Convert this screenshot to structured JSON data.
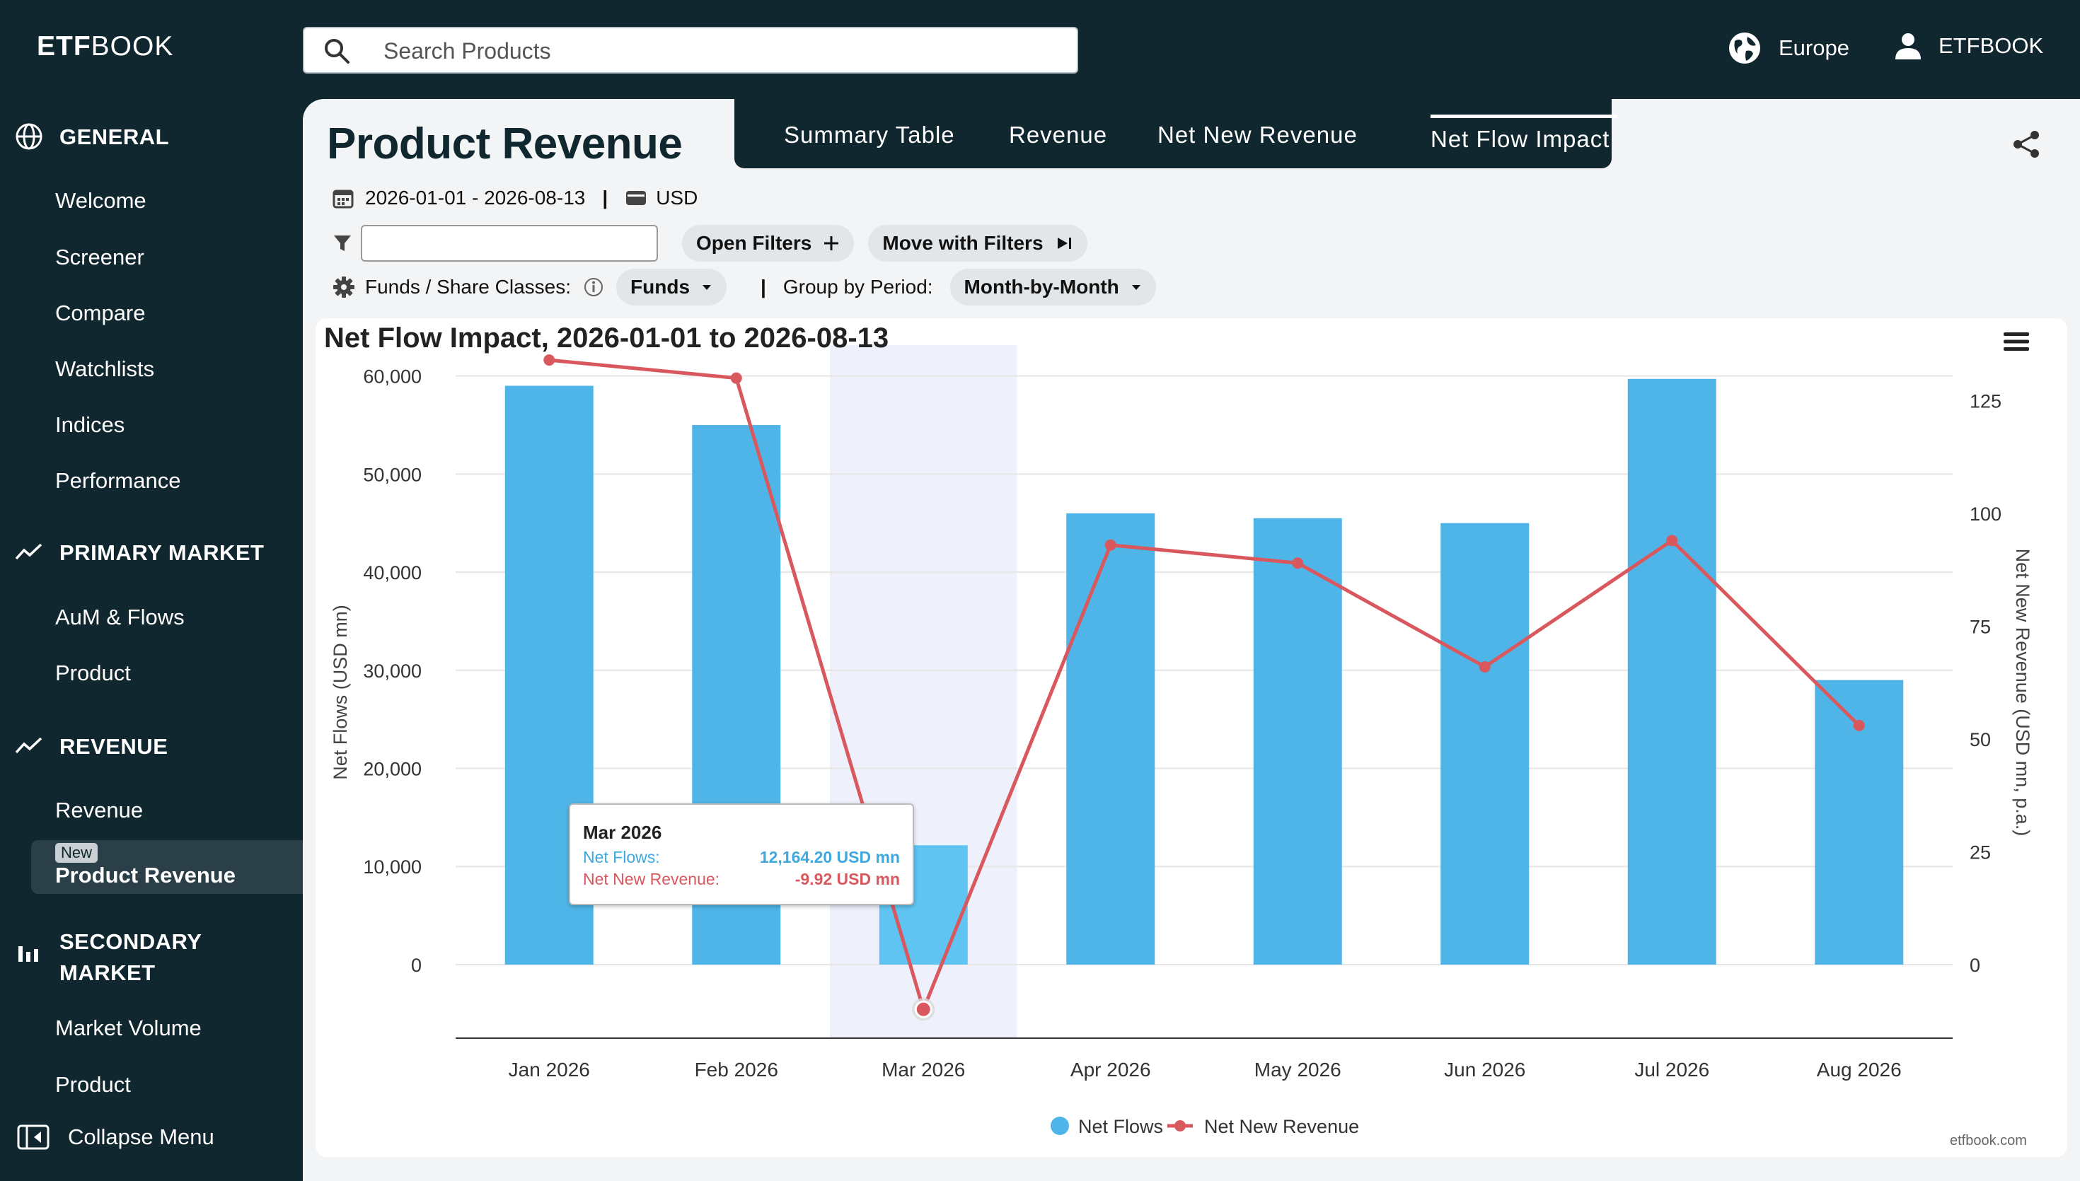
{
  "header": {
    "logo_prefix": "ETF",
    "logo_suffix": "BOOK",
    "search_placeholder": "Search Products",
    "region": "Europe",
    "user": "ETFBOOK"
  },
  "sidebar": {
    "sections": [
      {
        "label": "GENERAL",
        "icon": "globe-icon",
        "items": [
          "Welcome",
          "Screener",
          "Compare",
          "Watchlists",
          "Indices",
          "Performance"
        ]
      },
      {
        "label": "PRIMARY MARKET",
        "icon": "trend-icon",
        "items": [
          "AuM & Flows",
          "Product"
        ]
      },
      {
        "label": "REVENUE",
        "icon": "trend-icon",
        "items": [
          "Revenue"
        ]
      },
      {
        "label_line1": "SECONDARY",
        "label_line2": "MARKET",
        "icon": "bar-chart-icon",
        "items": [
          "Market Volume",
          "Product"
        ]
      }
    ],
    "active_item": {
      "badge": "New",
      "label": "Product Revenue"
    },
    "collapse_label": "Collapse Menu"
  },
  "page": {
    "title": "Product Revenue",
    "tabs": [
      "Summary Table",
      "Revenue",
      "Net New Revenue",
      "Net Flow Impact"
    ],
    "active_tab": "Net Flow Impact",
    "date_range": "2026-01-01 - 2026-08-13",
    "separator": "|",
    "currency": "USD",
    "filter_value": "",
    "open_filters_label": "Open Filters",
    "move_filters_label": "Move with Filters",
    "funds_label": "Funds / Share Classes:",
    "funds_value": "Funds",
    "group_label": "Group by Period:",
    "group_value": "Month-by-Month"
  },
  "chart_data": {
    "type": "bar",
    "title": "Net Flow Impact, 2026-01-01 to 2026-08-13",
    "categories": [
      "Jan 2026",
      "Feb 2026",
      "Mar 2026",
      "Apr 2026",
      "May 2026",
      "Jun 2026",
      "Jul 2026",
      "Aug 2026"
    ],
    "series": [
      {
        "name": "Net Flows",
        "type": "bar",
        "axis": "left",
        "color": "#4fb5e8",
        "values": [
          59000,
          55000,
          12164.2,
          46000,
          45500,
          45000,
          59700,
          29000
        ]
      },
      {
        "name": "Net New Revenue",
        "type": "line",
        "axis": "right",
        "color": "#d9585e",
        "values": [
          134,
          130,
          -9.92,
          93,
          89,
          66,
          94,
          53
        ]
      }
    ],
    "ylabel": "Net Flows (USD mn)",
    "y2label": "Net New Revenue (USD mn, p.a.)",
    "ylim": [
      -7500,
      63000
    ],
    "y2lim": [
      -16.3,
      137
    ],
    "yticks": [
      "0",
      "10,000",
      "20,000",
      "30,000",
      "40,000",
      "50,000",
      "60,000"
    ],
    "y2ticks": [
      "0",
      "25",
      "50",
      "75",
      "100",
      "125"
    ],
    "legend": "bottom-center",
    "highlighted_category": "Mar 2026",
    "tooltip": {
      "title": "Mar 2026",
      "net_flows_label": "Net Flows:",
      "net_flows_value": "12,164.20 USD mn",
      "net_new_revenue_label": "Net New Revenue:",
      "net_new_revenue_value": "-9.92 USD mn"
    },
    "credit": "etfbook.com"
  }
}
